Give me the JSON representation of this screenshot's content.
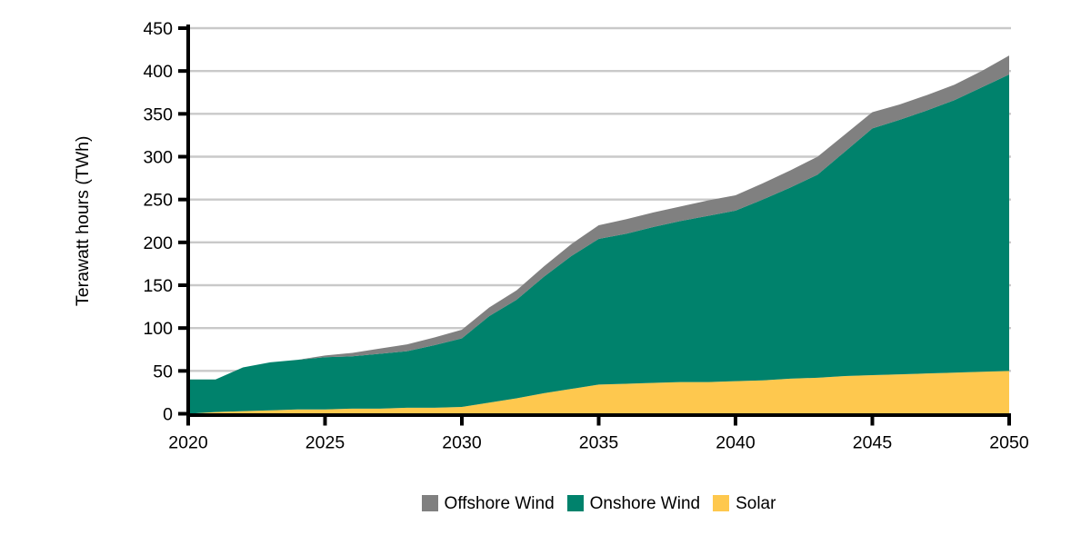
{
  "chart_data": {
    "type": "area",
    "stacked": true,
    "title": "",
    "xlabel": "",
    "ylabel": "Terawatt hours (TWh)",
    "xlim": [
      2020,
      2050
    ],
    "ylim": [
      0,
      450
    ],
    "xticks": [
      2020,
      2025,
      2030,
      2035,
      2040,
      2045,
      2050
    ],
    "yticks": [
      0,
      50,
      100,
      150,
      200,
      250,
      300,
      350,
      400,
      450
    ],
    "grid": "horizontal",
    "legend_position": "bottom",
    "legend_order": [
      "Offshore Wind",
      "Onshore Wind",
      "Solar"
    ],
    "x": [
      2020,
      2021,
      2022,
      2023,
      2024,
      2025,
      2026,
      2027,
      2028,
      2029,
      2030,
      2031,
      2032,
      2033,
      2034,
      2035,
      2036,
      2037,
      2038,
      2039,
      2040,
      2041,
      2042,
      2043,
      2044,
      2045,
      2046,
      2047,
      2048,
      2049,
      2050
    ],
    "series": [
      {
        "name": "Solar",
        "color": "#FEC84E",
        "values": [
          0,
          2,
          3,
          4,
          5,
          5,
          6,
          6,
          7,
          7,
          8,
          13,
          18,
          24,
          29,
          34,
          35,
          36,
          37,
          37,
          38,
          39,
          41,
          42,
          44,
          45,
          46,
          47,
          48,
          49,
          50
        ]
      },
      {
        "name": "Onshore Wind",
        "color": "#00826C",
        "values": [
          40,
          38,
          51,
          56,
          58,
          61,
          61,
          64,
          66,
          73,
          80,
          101,
          115,
          136,
          155,
          170,
          175,
          182,
          188,
          194,
          199,
          211,
          223,
          237,
          262,
          288,
          297,
          307,
          318,
          332,
          346
        ]
      },
      {
        "name": "Offshore Wind",
        "color": "#808080",
        "values": [
          0,
          0,
          0,
          0,
          0,
          2,
          4,
          6,
          8,
          9,
          10,
          10,
          11,
          12,
          14,
          16,
          17,
          17,
          17,
          18,
          18,
          19,
          20,
          21,
          20,
          19,
          18,
          18,
          18,
          19,
          22
        ]
      }
    ],
    "colors": {
      "grid": "#C9C9C9",
      "axis": "#000000",
      "text": "#000000",
      "background": "#FFFFFF"
    }
  }
}
